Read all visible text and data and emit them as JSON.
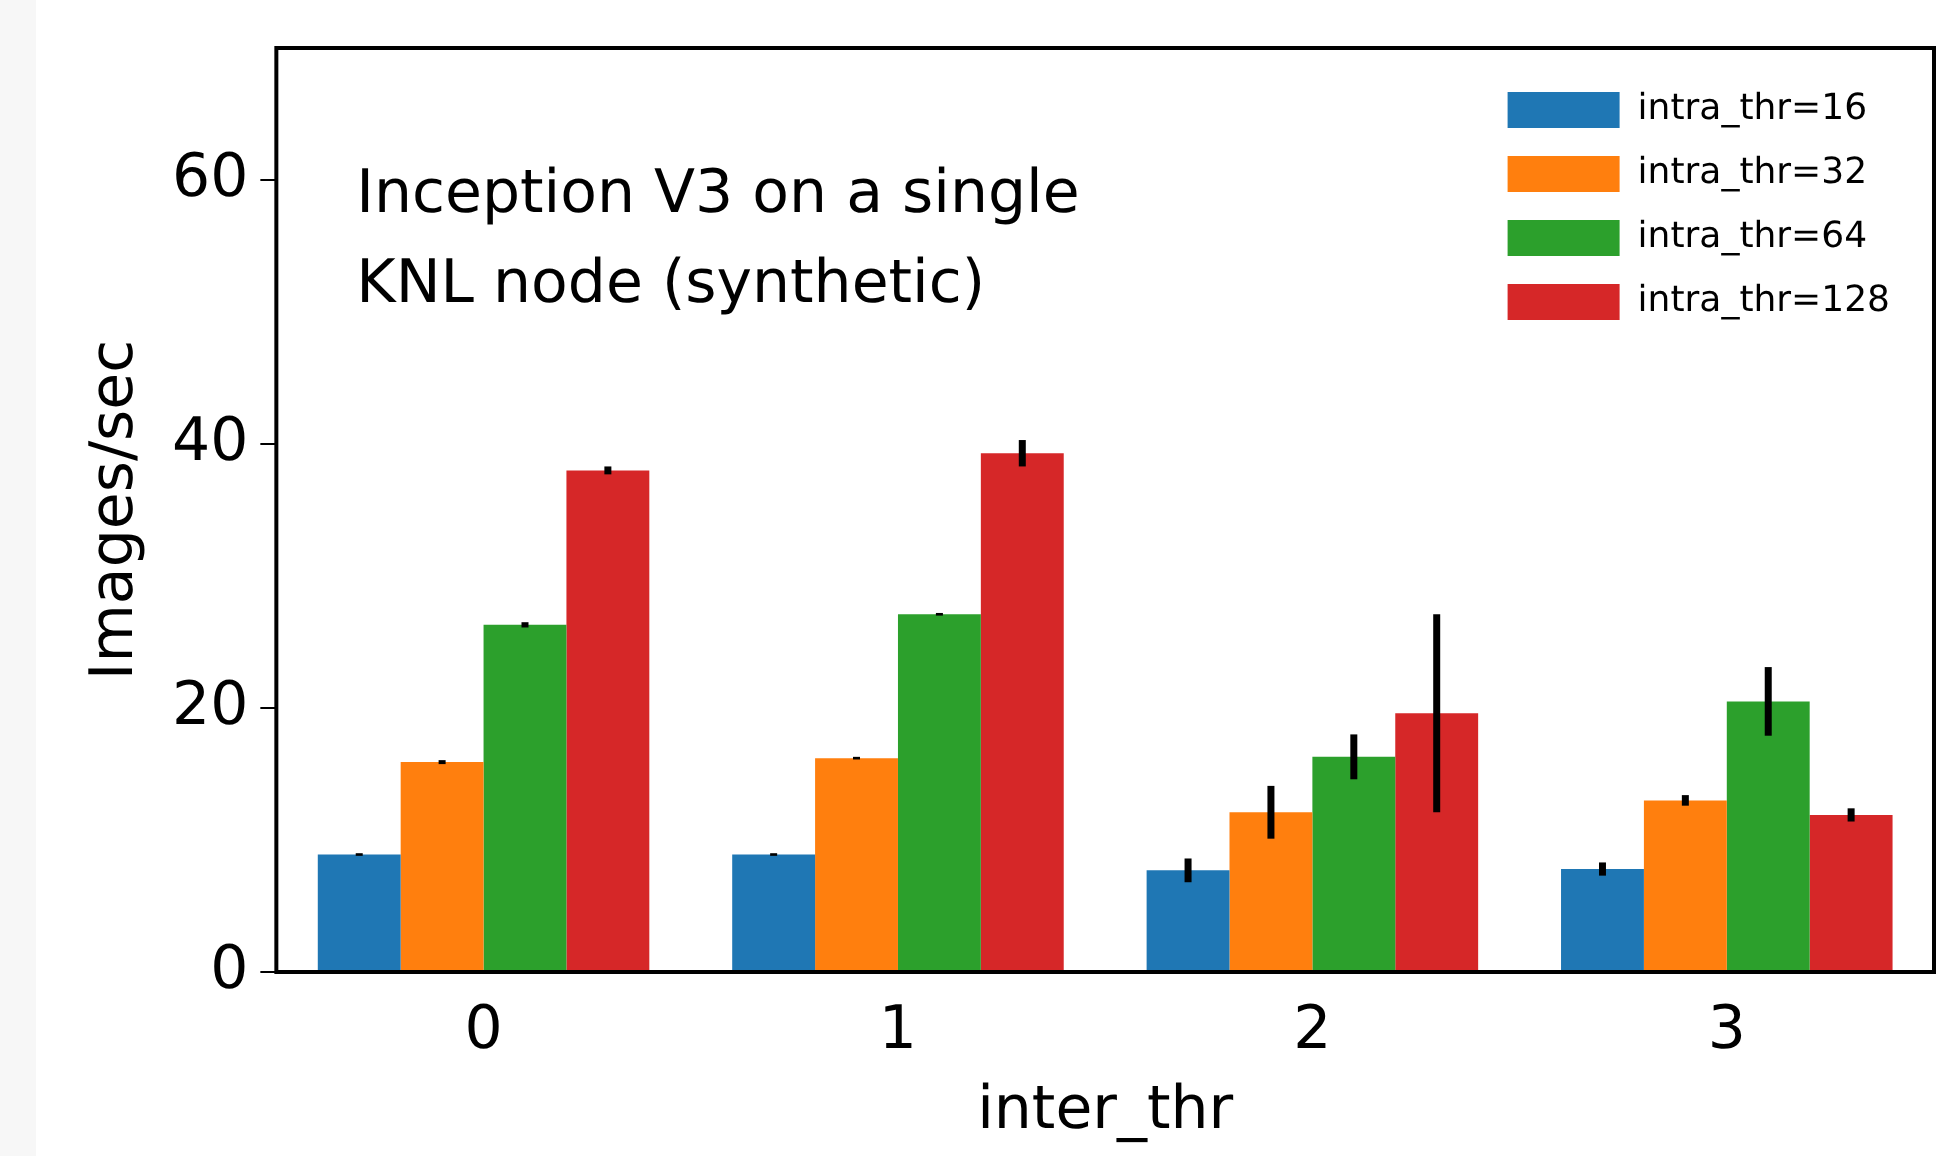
{
  "chart_data": {
    "type": "bar",
    "xlabel": "inter_thr",
    "ylabel": "Images/sec",
    "annotations": [
      "Inception V3 on a single\nKNL node (synthetic)"
    ],
    "categories": [
      "0",
      "1",
      "2",
      "3"
    ],
    "series": [
      {
        "name": "intra_thr=16",
        "color": "#1f77b4",
        "values": [
          8.9,
          8.9,
          7.7,
          7.8
        ],
        "errors": [
          0.1,
          0.1,
          0.9,
          0.5
        ]
      },
      {
        "name": "intra_thr=32",
        "color": "#ff7f0e",
        "values": [
          15.9,
          16.2,
          12.1,
          13.0
        ],
        "errors": [
          0.15,
          0.1,
          2.0,
          0.4
        ]
      },
      {
        "name": "intra_thr=64",
        "color": "#2ca02c",
        "values": [
          26.3,
          27.1,
          16.3,
          20.5
        ],
        "errors": [
          0.2,
          0.1,
          1.7,
          2.6
        ]
      },
      {
        "name": "intra_thr=128",
        "color": "#d62728",
        "values": [
          38.0,
          39.3,
          19.6,
          11.9
        ],
        "errors": [
          0.3,
          1.0,
          7.5,
          0.5
        ]
      }
    ],
    "ylim": [
      0,
      70
    ],
    "yticks": [
      0,
      20,
      40,
      60
    ],
    "grid": false,
    "legend": "top right"
  }
}
